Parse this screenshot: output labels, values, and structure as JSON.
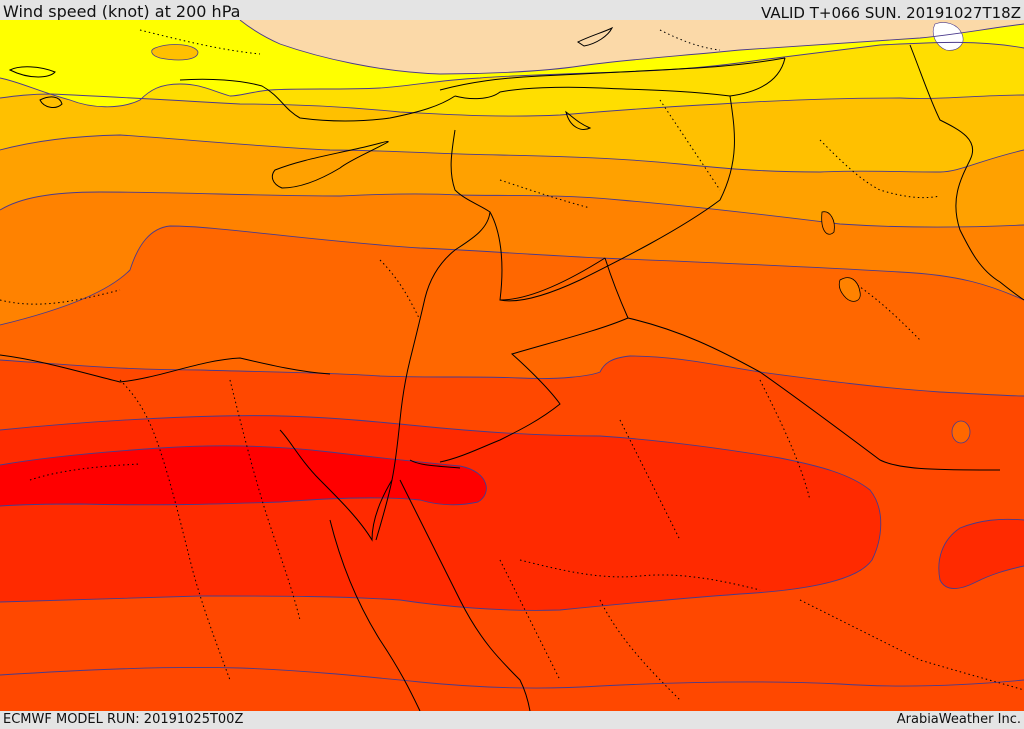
{
  "header": {
    "title": "Wind speed (knot) at 200 hPa",
    "valid": "VALID T+066 SUN. 20191027T18Z"
  },
  "footer": {
    "model_run": "ECMWF MODEL RUN: 20191025T00Z",
    "credit": "ArabiaWeather Inc."
  },
  "colors": {
    "band_0": "#fbd9a8",
    "band_1": "#ffff00",
    "band_2": "#ffde00",
    "band_3": "#ffc000",
    "band_4": "#ffa100",
    "band_5": "#ff8200",
    "band_6": "#ff6700",
    "band_7": "#ff4800",
    "band_8": "#ff2a00",
    "band_9": "#ff0000",
    "contour": "#4a3a8c",
    "border": "#000000"
  }
}
